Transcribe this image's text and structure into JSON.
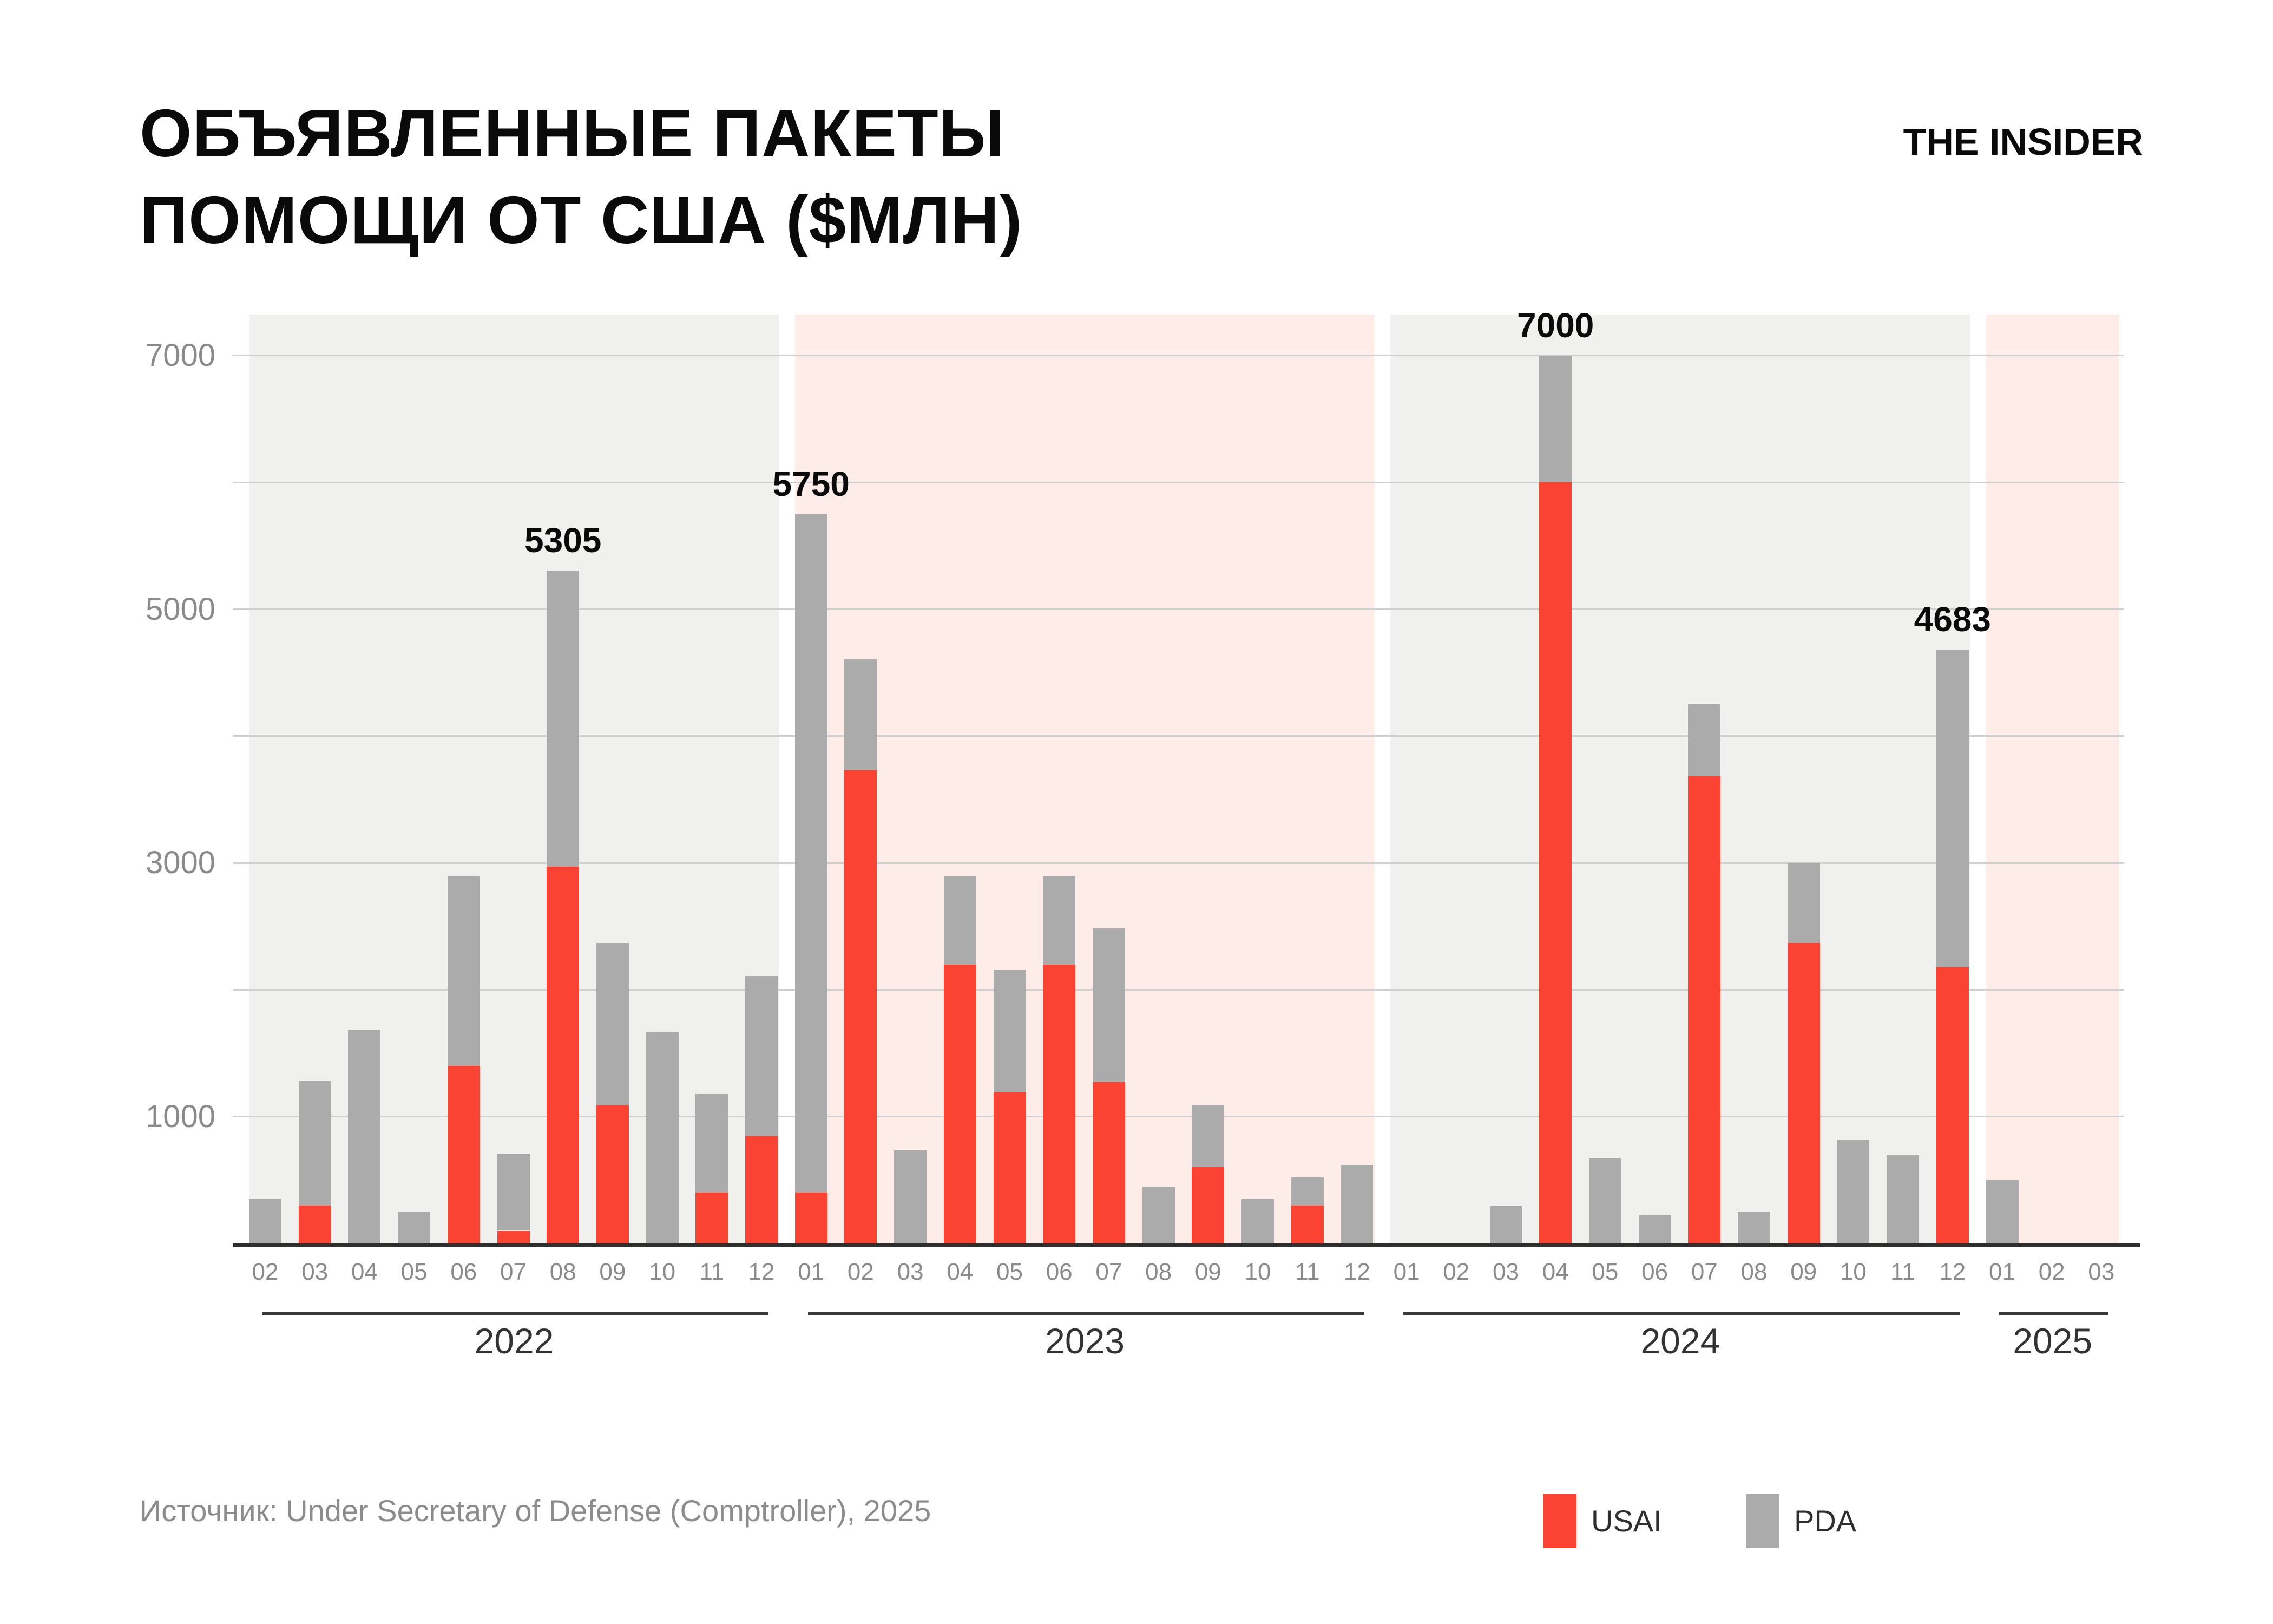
{
  "title": {
    "line1": "ОБЪЯВЛЕННЫЕ ПАКЕТЫ",
    "line2": "ПОМОЩИ ОТ США ($МЛН)"
  },
  "logo": "THE INSIDER",
  "source": "Источник: Under Secretary of Defense (Comptroller), 2025",
  "legend": [
    {
      "label": "USAI",
      "color": "#fb4334"
    },
    {
      "label": "PDA",
      "color": "#ababab"
    }
  ],
  "colors": {
    "usai": "#fb4334",
    "pda": "#ababab",
    "panel_even": "#f0f0ef",
    "panel_odd": "#fdece8",
    "gridline": "#cfcfcf",
    "axis_line": "#2e2e2e",
    "month_label": "#8a8a8a",
    "year_label": "#333333",
    "annotation": "#0a0a0a"
  },
  "chart_data": {
    "type": "bar",
    "stacked": true,
    "title": "ОБЪЯВЛЕННЫЕ ПАКЕТЫ ПОМОЩИ ОТ США ($МЛН)",
    "unit": "$ million",
    "ylim": [
      0,
      7400
    ],
    "yticks": [
      1000,
      3000,
      5000,
      7000
    ],
    "grid_step": 1000,
    "grid": true,
    "legend_position": "bottom-right",
    "series_names": [
      "USAI",
      "PDA"
    ],
    "years": [
      {
        "year": "2022",
        "background": "#f0f0ef",
        "months": [
          "02",
          "03",
          "04",
          "05",
          "06",
          "07",
          "08",
          "09",
          "10",
          "11",
          "12"
        ],
        "usai": [
          0,
          300,
          0,
          0,
          1400,
          100,
          2970,
          1090,
          0,
          400,
          845
        ],
        "pda": [
          350,
          980,
          1685,
          250,
          1500,
          610,
          2335,
          1280,
          1670,
          780,
          1265
        ]
      },
      {
        "year": "2023",
        "background": "#fdece8",
        "months": [
          "01",
          "02",
          "03",
          "04",
          "05",
          "06",
          "07",
          "08",
          "09",
          "10",
          "11",
          "12"
        ],
        "usai": [
          400,
          3730,
          0,
          2200,
          1190,
          2200,
          1270,
          0,
          600,
          0,
          300,
          0
        ],
        "pda": [
          5350,
          875,
          735,
          700,
          965,
          700,
          1215,
          450,
          490,
          350,
          220,
          620
        ]
      },
      {
        "year": "2024",
        "background": "#f0f0ef",
        "months": [
          "01",
          "02",
          "03",
          "04",
          "05",
          "06",
          "07",
          "08",
          "09",
          "10",
          "11",
          "12"
        ],
        "usai": [
          0,
          0,
          0,
          6000,
          0,
          0,
          3685,
          0,
          2370,
          0,
          0,
          2175
        ],
        "pda": [
          0,
          0,
          300,
          1000,
          675,
          225,
          565,
          250,
          630,
          820,
          695,
          2508
        ]
      },
      {
        "year": "2025",
        "background": "#fdece8",
        "months": [
          "01",
          "02",
          "03"
        ],
        "usai": [
          0,
          0,
          0
        ],
        "pda": [
          500,
          0,
          0
        ]
      }
    ],
    "annotations": [
      {
        "year": "2022",
        "month": "08",
        "text": "5305"
      },
      {
        "year": "2023",
        "month": "01",
        "text": "5750"
      },
      {
        "year": "2024",
        "month": "04",
        "text": "7000"
      },
      {
        "year": "2024",
        "month": "12",
        "text": "4683"
      }
    ]
  }
}
